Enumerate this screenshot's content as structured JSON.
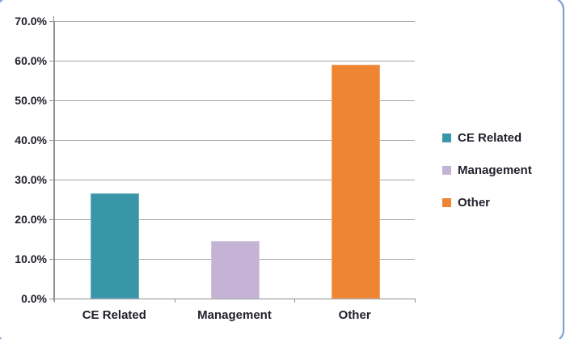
{
  "window": {
    "border_color": "#7a9cd8",
    "background": "#ffffff"
  },
  "colors": {
    "gridline": "#a6a6a6",
    "axis": "#8f8f8f",
    "label_text": "#21212b"
  },
  "chart_data": {
    "type": "bar",
    "title": "",
    "xlabel": "",
    "ylabel": "",
    "categories": [
      "CE Related",
      "Management",
      "Other"
    ],
    "values": [
      26.5,
      14.5,
      59.0
    ],
    "value_unit": "%",
    "bar_colors": [
      "#3996A8",
      "#C4B3D5",
      "#EE8533"
    ],
    "ylim": [
      0,
      70
    ],
    "y_ticks": [
      "0.0%",
      "10.0%",
      "20.0%",
      "30.0%",
      "40.0%",
      "50.0%",
      "60.0%",
      "70.0%"
    ],
    "grid": true,
    "legend": {
      "position": "right",
      "entries": [
        {
          "label": "CE Related",
          "color": "#3996A8"
        },
        {
          "label": "Management",
          "color": "#C4B3D5"
        },
        {
          "label": "Other",
          "color": "#EE8533"
        }
      ]
    }
  }
}
